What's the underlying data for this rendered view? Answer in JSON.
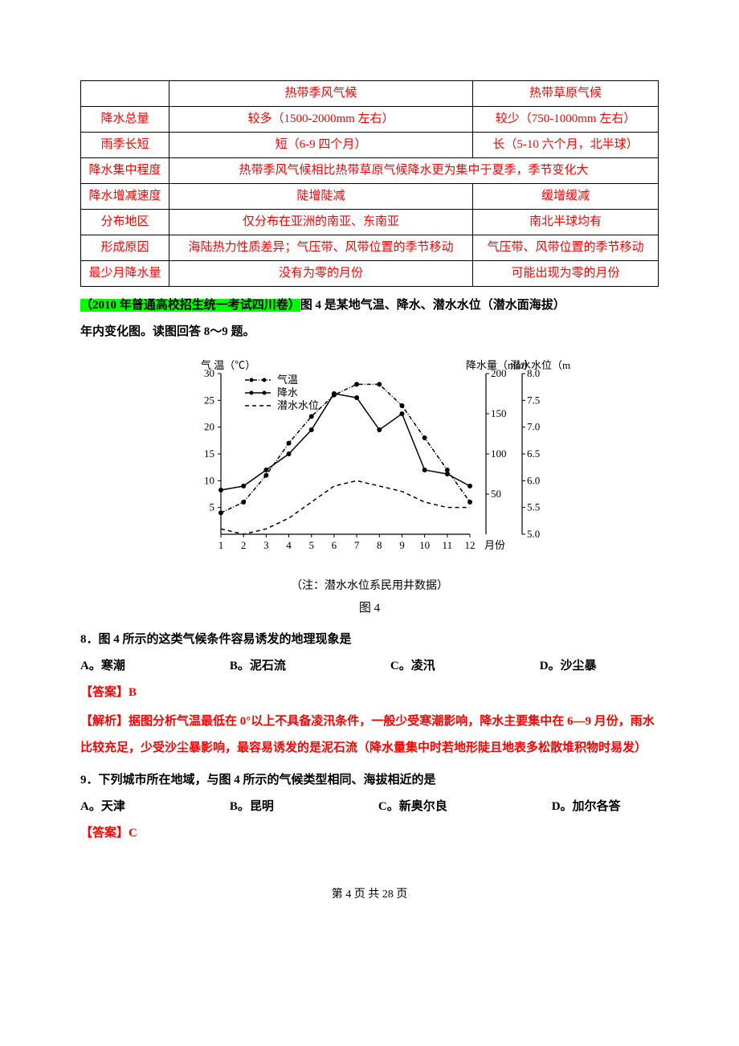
{
  "table": {
    "rows": [
      {
        "label": "",
        "col1": "热带季风气候",
        "col2": "热带草原气候",
        "span": false
      },
      {
        "label": "降水总量",
        "col1": "较多（1500-2000mm 左右）",
        "col2": "较少（750-1000mm 左右）",
        "span": false
      },
      {
        "label": "雨季长短",
        "col1": "短（6-9 四个月）",
        "col2": "长（5-10 六个月，北半球）",
        "span": false
      },
      {
        "label": "降水集中程度",
        "col1": "热带季风气候相比热带草原气候降水更为集中于夏季，季节变化大",
        "col2": "",
        "span": true
      },
      {
        "label": "降水增减速度",
        "col1": "陡增陡减",
        "col2": "缓增缓减",
        "span": false
      },
      {
        "label": "分布地区",
        "col1": "仅分布在亚洲的南亚、东南亚",
        "col2": "南北半球均有",
        "span": false
      },
      {
        "label": "形成原因",
        "col1": "海陆热力性质差异；气压带、风带位置的季节移动",
        "col2": "气压带、风带位置的季节移动",
        "span": false
      },
      {
        "label": "最少月降水量",
        "col1": "没有为零的月份",
        "col2": "可能出现为零的月份",
        "span": false
      }
    ],
    "colors": {
      "text": "#ff0000",
      "border": "#000000"
    }
  },
  "intro": {
    "highlight": "（2010 年普通高校招生统一考试四川卷）",
    "rest1": "图 4 是某地气温、降水、潜水水位（潜水面海拔）",
    "rest2": "年内变化图。读图回答 8～9 题。"
  },
  "chart": {
    "type": "line",
    "title": "图 4",
    "note": "（注：潜水水位系民用井数据）",
    "x_label": "月份",
    "x_ticks": [
      1,
      2,
      3,
      4,
      5,
      6,
      7,
      8,
      9,
      10,
      11,
      12
    ],
    "left_axis": {
      "label": "气 温（℃）",
      "ylim": [
        0,
        30
      ],
      "ytick_step": 5,
      "ticks": [
        5,
        10,
        15,
        20,
        25,
        30
      ]
    },
    "right_axis_precip": {
      "label": "降水量（mm）",
      "ylim": [
        0,
        200
      ],
      "ytick_step": 50,
      "ticks": [
        50,
        100,
        150,
        200
      ]
    },
    "right_axis_water": {
      "label": "潜水水位（m）",
      "ylim": [
        5.0,
        8.0
      ],
      "ytick_step": 0.5,
      "ticks": [
        5.0,
        5.5,
        6.0,
        6.5,
        7.0,
        7.5,
        8.0
      ]
    },
    "legend": {
      "items": [
        {
          "name": "气温",
          "style": "dash-dot-marker",
          "color": "#000000"
        },
        {
          "name": "降水",
          "style": "solid-marker",
          "color": "#000000"
        },
        {
          "name": "潜水水位",
          "style": "dashed",
          "color": "#000000"
        }
      ],
      "position": "top-left-inside"
    },
    "series": {
      "temperature": {
        "months": [
          1,
          2,
          3,
          4,
          5,
          6,
          7,
          8,
          9,
          10,
          11,
          12
        ],
        "values": [
          4,
          6,
          11,
          17,
          22,
          26,
          28,
          28,
          24,
          18,
          12,
          6
        ],
        "axis": "left",
        "color": "#000000",
        "marker": "circle",
        "dash": "5,2,1,2"
      },
      "precipitation": {
        "months": [
          1,
          2,
          3,
          4,
          5,
          6,
          7,
          8,
          9,
          10,
          11,
          12
        ],
        "values": [
          55,
          60,
          80,
          100,
          130,
          175,
          170,
          130,
          150,
          80,
          75,
          60
        ],
        "axis": "right_precip",
        "color": "#000000",
        "marker": "circle",
        "dash": "none"
      },
      "water_level": {
        "months": [
          1,
          2,
          3,
          4,
          5,
          6,
          7,
          8,
          9,
          10,
          11,
          12
        ],
        "values": [
          5.1,
          5.0,
          5.1,
          5.3,
          5.6,
          5.9,
          6.0,
          5.9,
          5.8,
          5.6,
          5.5,
          5.5
        ],
        "axis": "right_water",
        "color": "#000000",
        "marker": "none",
        "dash": "5,4"
      }
    },
    "background_color": "#ffffff",
    "axis_color": "#000000",
    "font_size": 13
  },
  "q8": {
    "stem": "8．图 4 所示的这类气候条件容易诱发的地理现象是",
    "opts": {
      "A": "A。寒潮",
      "B": "B。泥石流",
      "C": "C。凌汛",
      "D": "D。沙尘暴"
    },
    "answer": "【答案】B",
    "explain": "【解析】据图分析气温最低在 0°以上不具备凌汛条件，一般少受寒潮影响，降水主要集中在 6—9 月份，雨水比较充足，少受沙尘暴影响，最容易诱发的是泥石流（降水量集中时若地形陡且地表多松散堆积物时易发）"
  },
  "q9": {
    "stem": "9．下列城市所在地域，与图 4 所示的气候类型相同、海拔相近的是",
    "opts": {
      "A": "A。天津",
      "B": "B。昆明",
      "C": "C。新奥尔良",
      "D": "D。加尔各答"
    },
    "answer": "【答案】C"
  },
  "footer": "第 4 页 共 28 页"
}
